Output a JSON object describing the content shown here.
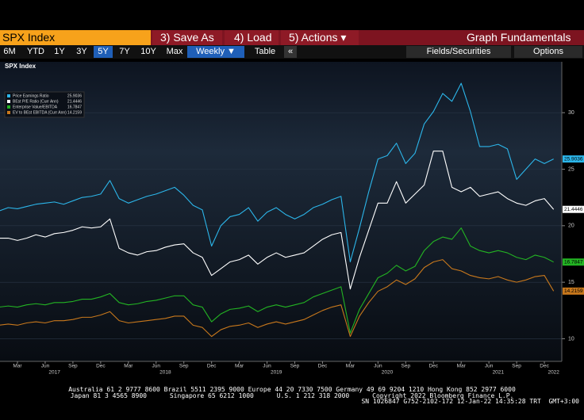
{
  "ui": {
    "security": "SPX Index",
    "menu": [
      "3) Save As",
      "4) Load",
      "5) Actions ▾"
    ],
    "function": "Graph Fundamentals",
    "periods": [
      "6M",
      "YTD",
      "1Y",
      "3Y",
      "5Y",
      "7Y",
      "10Y",
      "Max"
    ],
    "frequency": "Weekly ▼",
    "table": "Table",
    "collapse": "«",
    "fields": "Fields/Securities",
    "options": "Options",
    "footer": [
      "Australia 61 2 9777 8600 Brazil 5511 2395 9000 Europe 44 20 7330 7500 Germany 49 69 9204 1210 Hong Kong 852 2977 6000",
      "Japan 81 3 4565 8900      Singapore 65 6212 1000      U.S. 1 212 318 2000      Copyright 2022 Bloomberg Finance L.P.",
      "SN 1026847 G752-2102-172 12-Jan-22 14:35:28 TRT  GMT+3:00"
    ]
  },
  "chart_data": {
    "type": "line",
    "title": "SPX Index",
    "x": [
      "2017-01",
      "2017-02",
      "2017-03",
      "2017-04",
      "2017-05",
      "2017-06",
      "2017-07",
      "2017-08",
      "2017-09",
      "2017-10",
      "2017-11",
      "2017-12",
      "2018-01",
      "2018-02",
      "2018-03",
      "2018-04",
      "2018-05",
      "2018-06",
      "2018-07",
      "2018-08",
      "2018-09",
      "2018-10",
      "2018-11",
      "2018-12",
      "2019-01",
      "2019-02",
      "2019-03",
      "2019-04",
      "2019-05",
      "2019-06",
      "2019-07",
      "2019-08",
      "2019-09",
      "2019-10",
      "2019-11",
      "2019-12",
      "2020-01",
      "2020-02",
      "2020-03",
      "2020-04",
      "2020-05",
      "2020-06",
      "2020-07",
      "2020-08",
      "2020-09",
      "2020-10",
      "2020-11",
      "2020-12",
      "2021-01",
      "2021-02",
      "2021-03",
      "2021-04",
      "2021-05",
      "2021-06",
      "2021-07",
      "2021-08",
      "2021-09",
      "2021-10",
      "2021-11",
      "2021-12",
      "2022-01"
    ],
    "series": [
      {
        "name": "Price Earnings Ratio",
        "color": "#2cb6ea",
        "values": [
          21.3,
          21.6,
          21.5,
          21.7,
          21.9,
          22.0,
          22.1,
          21.9,
          22.2,
          22.5,
          22.6,
          22.8,
          24.0,
          22.4,
          22.0,
          22.3,
          22.6,
          22.8,
          23.1,
          23.4,
          22.7,
          21.8,
          21.4,
          18.2,
          20.0,
          20.8,
          21.0,
          21.6,
          20.4,
          21.2,
          21.6,
          21.0,
          20.6,
          21.0,
          21.6,
          21.9,
          22.3,
          22.6,
          16.8,
          19.8,
          23.0,
          25.9,
          26.2,
          27.3,
          25.5,
          26.4,
          29.0,
          30.1,
          31.7,
          31.0,
          32.6,
          30.1,
          27.0,
          27.0,
          27.2,
          26.8,
          24.1,
          25.0,
          25.9,
          25.5,
          25.9036
        ]
      },
      {
        "name": "BEst P/E Ratio (Curr Ann)",
        "color": "#ffffff",
        "values": [
          18.9,
          18.9,
          18.7,
          18.9,
          19.2,
          19.0,
          19.3,
          19.4,
          19.6,
          19.9,
          19.8,
          19.9,
          20.6,
          18.0,
          17.6,
          17.4,
          17.7,
          17.8,
          18.1,
          18.3,
          18.4,
          17.6,
          17.2,
          15.6,
          16.2,
          16.8,
          17.0,
          17.4,
          16.6,
          17.2,
          17.6,
          17.2,
          17.4,
          17.6,
          18.2,
          18.8,
          19.2,
          19.4,
          14.4,
          17.2,
          19.6,
          22.0,
          22.0,
          23.9,
          22.0,
          22.8,
          23.6,
          26.6,
          26.6,
          23.4,
          23.0,
          23.4,
          22.6,
          22.8,
          23.0,
          22.4,
          22.0,
          21.8,
          22.2,
          22.4,
          21.4446
        ]
      },
      {
        "name": "Enterprise Value/EBITDA",
        "color": "#23b423",
        "values": [
          12.8,
          12.9,
          12.8,
          13.0,
          13.1,
          13.0,
          13.2,
          13.2,
          13.3,
          13.5,
          13.5,
          13.7,
          14.0,
          13.2,
          13.0,
          13.1,
          13.3,
          13.4,
          13.6,
          13.8,
          13.8,
          13.0,
          12.8,
          11.5,
          12.2,
          12.6,
          12.7,
          12.9,
          12.4,
          12.8,
          13.0,
          12.8,
          13.0,
          13.2,
          13.7,
          14.0,
          14.3,
          14.6,
          10.5,
          12.6,
          14.0,
          15.4,
          15.8,
          16.5,
          16.0,
          16.4,
          17.8,
          18.6,
          19.0,
          18.8,
          19.8,
          18.2,
          17.8,
          17.6,
          17.8,
          17.6,
          17.2,
          17.0,
          17.4,
          17.2,
          16.7847
        ]
      },
      {
        "name": "EV to BEst EBITDA (Curr Ann)",
        "color": "#c8781c",
        "values": [
          11.2,
          11.3,
          11.2,
          11.4,
          11.5,
          11.4,
          11.6,
          11.6,
          11.7,
          11.9,
          11.9,
          12.1,
          12.4,
          11.6,
          11.4,
          11.5,
          11.6,
          11.7,
          11.8,
          12.0,
          12.0,
          11.2,
          11.0,
          10.2,
          10.8,
          11.1,
          11.2,
          11.4,
          11.0,
          11.3,
          11.5,
          11.3,
          11.5,
          11.7,
          12.1,
          12.5,
          12.8,
          13.0,
          10.2,
          12.0,
          13.2,
          14.2,
          14.6,
          15.2,
          14.8,
          15.3,
          16.3,
          16.8,
          17.0,
          16.2,
          16.0,
          15.6,
          15.4,
          15.3,
          15.5,
          15.2,
          15.0,
          15.2,
          15.5,
          15.6,
          14.2159
        ]
      }
    ],
    "xlim": [
      "2017-01",
      "2022-01"
    ],
    "xticks": [
      {
        "value": "2017-03",
        "label": "Mar"
      },
      {
        "value": "2017-06",
        "label": "Jun"
      },
      {
        "value": "2017-09",
        "label": "Sep"
      },
      {
        "value": "2017-12",
        "label": "Dec"
      },
      {
        "value": "2018-03",
        "label": "Mar"
      },
      {
        "value": "2018-06",
        "label": "Jun"
      },
      {
        "value": "2018-09",
        "label": "Sep"
      },
      {
        "value": "2018-12",
        "label": "Dec"
      },
      {
        "value": "2019-03",
        "label": "Mar"
      },
      {
        "value": "2019-06",
        "label": "Jun"
      },
      {
        "value": "2019-09",
        "label": "Sep"
      },
      {
        "value": "2019-12",
        "label": "Dec"
      },
      {
        "value": "2020-03",
        "label": "Mar"
      },
      {
        "value": "2020-06",
        "label": "Jun"
      },
      {
        "value": "2020-09",
        "label": "Sep"
      },
      {
        "value": "2020-12",
        "label": "Dec"
      },
      {
        "value": "2021-03",
        "label": "Mar"
      },
      {
        "value": "2021-06",
        "label": "Jun"
      },
      {
        "value": "2021-09",
        "label": "Sep"
      },
      {
        "value": "2021-12",
        "label": "Dec"
      }
    ],
    "xticks_years": [
      {
        "value": "2017-07",
        "label": "2017"
      },
      {
        "value": "2018-07",
        "label": "2018"
      },
      {
        "value": "2019-07",
        "label": "2019"
      },
      {
        "value": "2020-07",
        "label": "2020"
      },
      {
        "value": "2021-07",
        "label": "2021"
      },
      {
        "value": "2022-01",
        "label": "2022"
      }
    ],
    "ylim": [
      8,
      34.5
    ],
    "yticks": [
      10,
      15,
      20,
      25,
      30
    ],
    "grid": true,
    "legend": "upper left"
  }
}
